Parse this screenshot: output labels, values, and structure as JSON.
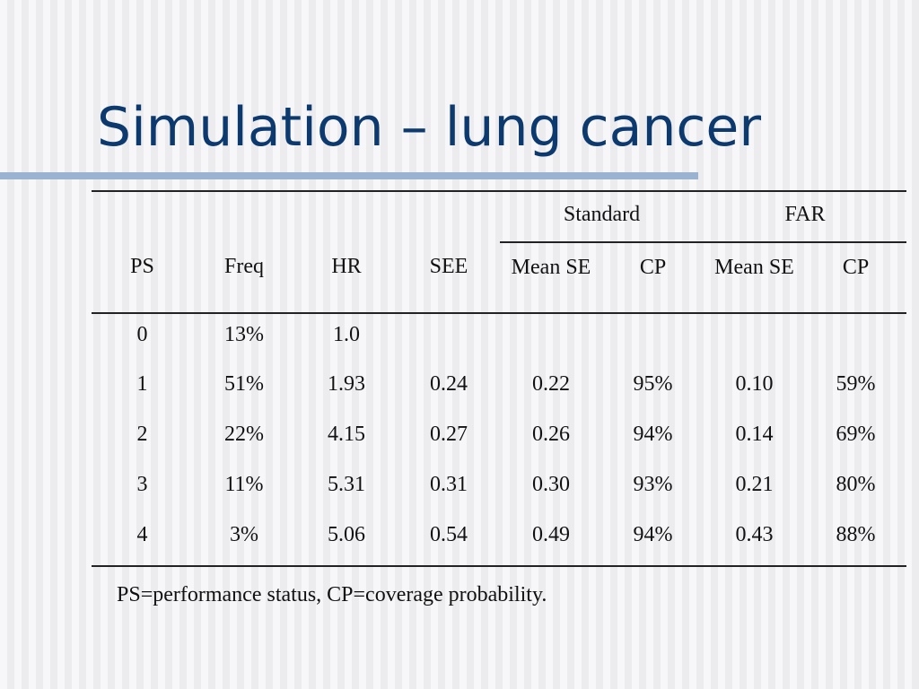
{
  "title": "Simulation – lung cancer",
  "table": {
    "group_headers": {
      "standard": "Standard",
      "far": "FAR"
    },
    "columns": {
      "ps": "PS",
      "freq": "Freq",
      "hr": "HR",
      "see": "SEE",
      "std_mean_se": "Mean SE",
      "std_cp": "CP",
      "far_mean_se": "Mean SE",
      "far_cp": "CP"
    },
    "rows": [
      {
        "ps": "0",
        "freq": "13%",
        "hr": "1.0",
        "see": "",
        "std_mean_se": "",
        "std_cp": "",
        "far_mean_se": "",
        "far_cp": ""
      },
      {
        "ps": "1",
        "freq": "51%",
        "hr": "1.93",
        "see": "0.24",
        "std_mean_se": "0.22",
        "std_cp": "95%",
        "far_mean_se": "0.10",
        "far_cp": "59%"
      },
      {
        "ps": "2",
        "freq": "22%",
        "hr": "4.15",
        "see": "0.27",
        "std_mean_se": "0.26",
        "std_cp": "94%",
        "far_mean_se": "0.14",
        "far_cp": "69%"
      },
      {
        "ps": "3",
        "freq": "11%",
        "hr": "5.31",
        "see": "0.31",
        "std_mean_se": "0.30",
        "std_cp": "93%",
        "far_mean_se": "0.21",
        "far_cp": "80%"
      },
      {
        "ps": "4",
        "freq": "3%",
        "hr": "5.06",
        "see": "0.54",
        "std_mean_se": "0.49",
        "std_cp": "94%",
        "far_mean_se": "0.43",
        "far_cp": "88%"
      }
    ]
  },
  "footnote": "PS=performance status, CP=coverage probability."
}
